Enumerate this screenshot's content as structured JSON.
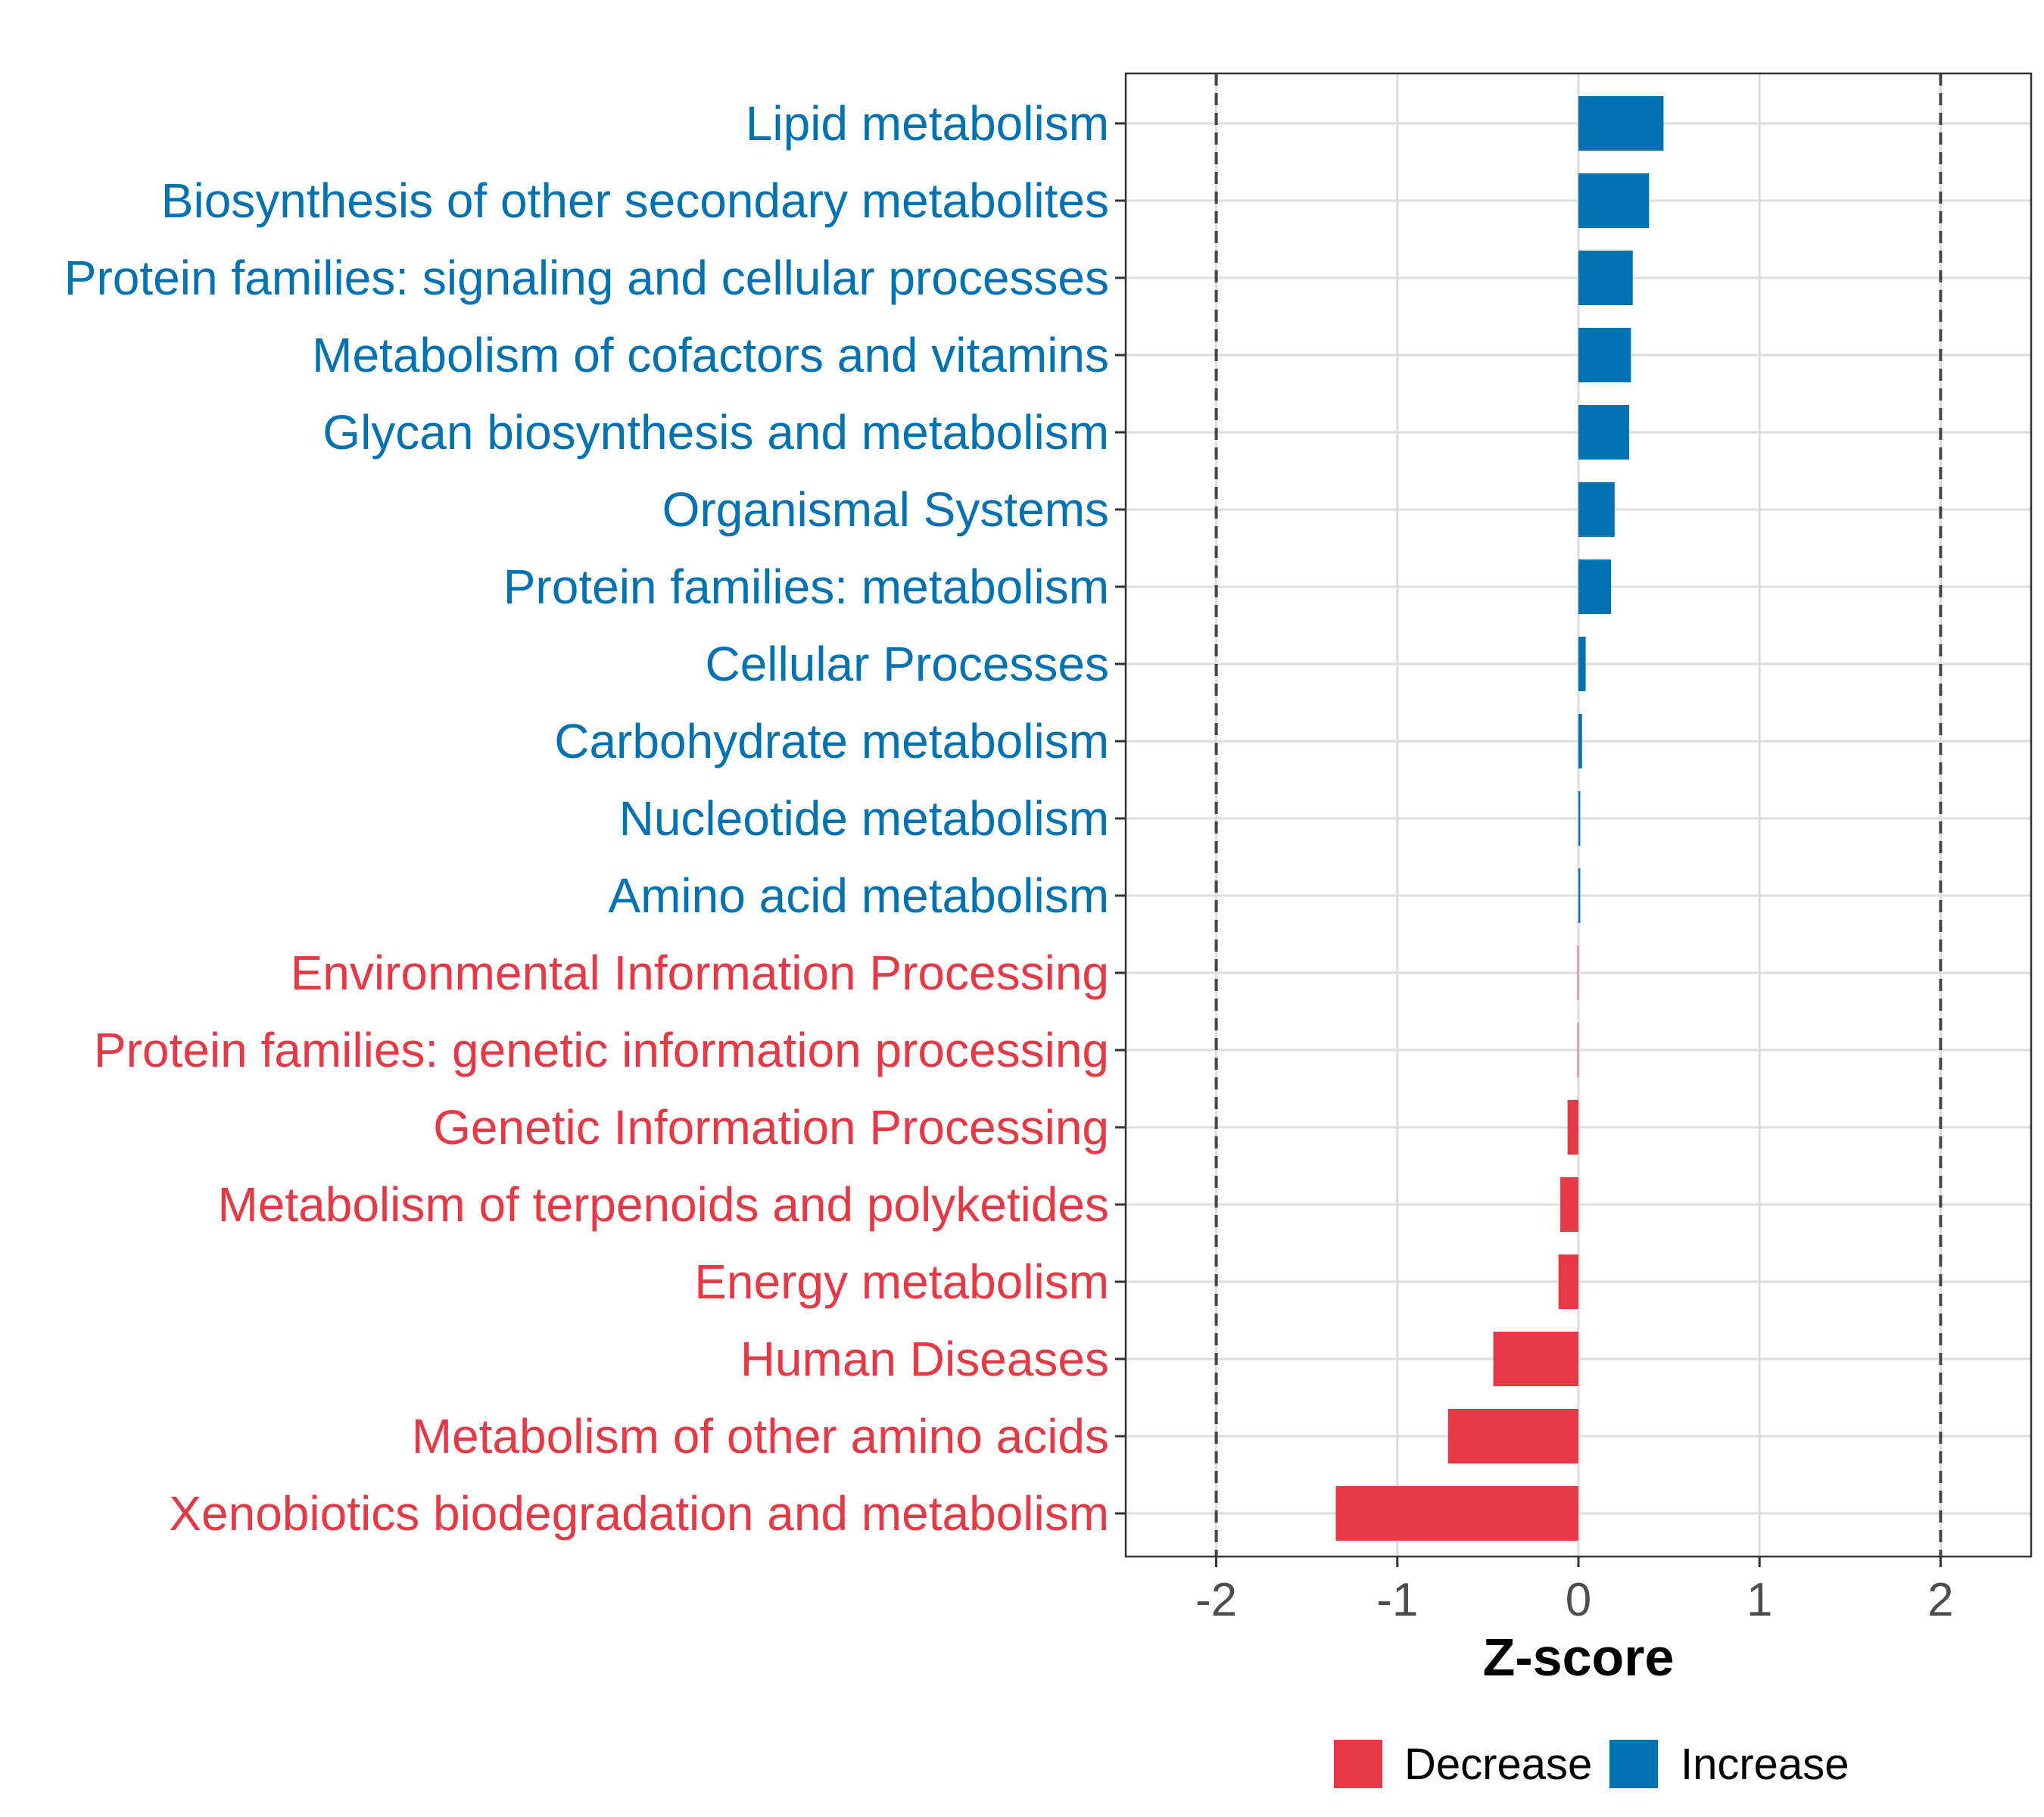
{
  "chart_data": {
    "type": "bar",
    "orientation": "horizontal",
    "title": "",
    "xlabel": "Z-score",
    "ylabel": "",
    "xlim": [
      -2.5,
      2.5
    ],
    "xticks": [
      -2,
      -1,
      0,
      1,
      2
    ],
    "xtick_labels": [
      "-2",
      "-1",
      "0",
      "1",
      "2"
    ],
    "reference_lines": [
      -2,
      2
    ],
    "grid": true,
    "legend_position": "bottom",
    "colors": {
      "Decrease": "#E63946",
      "Increase": "#0072B2"
    },
    "categories": [
      "Lipid metabolism",
      "Biosynthesis of other secondary metabolites",
      "Protein families: signaling and cellular processes",
      "Metabolism of cofactors and vitamins",
      "Glycan biosynthesis and metabolism",
      "Organismal Systems",
      "Protein families: metabolism",
      "Cellular Processes",
      "Carbohydrate metabolism",
      "Nucleotide metabolism",
      "Amino acid metabolism",
      "Environmental Information Processing",
      "Protein families: genetic information processing",
      "Genetic Information Processing",
      "Metabolism of terpenoids and polyketides",
      "Energy metabolism",
      "Human Diseases",
      "Metabolism of other amino acids",
      "Xenobiotics biodegradation and metabolism"
    ],
    "values": [
      0.47,
      0.39,
      0.3,
      0.29,
      0.28,
      0.2,
      0.18,
      0.04,
      0.02,
      0.01,
      0.01,
      -0.005,
      -0.005,
      -0.06,
      -0.1,
      -0.11,
      -0.47,
      -0.72,
      -1.34
    ],
    "groups": [
      "Increase",
      "Increase",
      "Increase",
      "Increase",
      "Increase",
      "Increase",
      "Increase",
      "Increase",
      "Increase",
      "Increase",
      "Increase",
      "Decrease",
      "Decrease",
      "Decrease",
      "Decrease",
      "Decrease",
      "Decrease",
      "Decrease",
      "Decrease"
    ],
    "legend": [
      {
        "label": "Decrease",
        "color": "#E63946"
      },
      {
        "label": "Increase",
        "color": "#0072B2"
      }
    ]
  }
}
